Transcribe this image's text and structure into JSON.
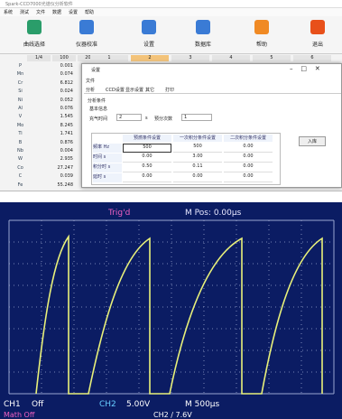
{
  "window": {
    "title": "Spark-CCD7000光谱仪分析软件",
    "menu": [
      "系统",
      "测试",
      "文件",
      "数据",
      "设置",
      "帮助"
    ],
    "toolbar": [
      "曲线选择",
      "仪器校准",
      "设置",
      "数据库",
      "帮助",
      "退出"
    ]
  },
  "results": {
    "header": [
      "1/4",
      "100",
      "200",
      "1",
      "2",
      "3",
      "4",
      "5",
      "6"
    ],
    "rows": [
      [
        "P",
        "0.001"
      ],
      [
        "Mn",
        "0.074"
      ],
      [
        "Cr",
        "6.812"
      ],
      [
        "Si",
        "0.024"
      ],
      [
        "Ni",
        "0.052"
      ],
      [
        "Al",
        "0.076"
      ],
      [
        "V",
        "1.545"
      ],
      [
        "Mo",
        "8.245"
      ],
      [
        "Ti",
        "1.741"
      ],
      [
        "B",
        "0.876"
      ],
      [
        "Nb",
        "0.004"
      ],
      [
        "W",
        "2.935"
      ],
      [
        "Co",
        "27.247"
      ],
      [
        "C",
        "0.039"
      ],
      [
        "Fe",
        "55.248"
      ]
    ]
  },
  "dialog": {
    "title": "设置",
    "menu": "文件",
    "tabs": [
      "分析",
      "CCD设置",
      "显示设置",
      "其它",
      "打印"
    ],
    "group": "分析条件",
    "subgroup": "基本信息",
    "field1": {
      "label": "充气时间",
      "value": "2",
      "unit": "s"
    },
    "field2": {
      "label": "预分次数",
      "value": "1"
    },
    "button": "入库",
    "table": {
      "header": [
        "预燃条件设置",
        "一次积分条件设置",
        "二次积分条件设置"
      ],
      "rows": [
        [
          "频率 Hz",
          "500",
          "500",
          "0.00"
        ],
        [
          "时间 s",
          "0.00",
          "3.00",
          "0.00"
        ],
        [
          "积分时 s",
          "0.50",
          "0.11",
          "0.00"
        ],
        [
          "延时 s",
          "0.00",
          "0.00",
          "0.00"
        ]
      ]
    }
  },
  "scope": {
    "trig": "Trig'd",
    "pos": "M Pos: 0.00μs",
    "ch1": "CH1",
    "ch1_value": "Off",
    "ch2": "CH2",
    "ch2_value": "5.00V",
    "time": "M 500μs",
    "math": "Math Off",
    "trigger": "CH2 ∕ 7.6V"
  }
}
